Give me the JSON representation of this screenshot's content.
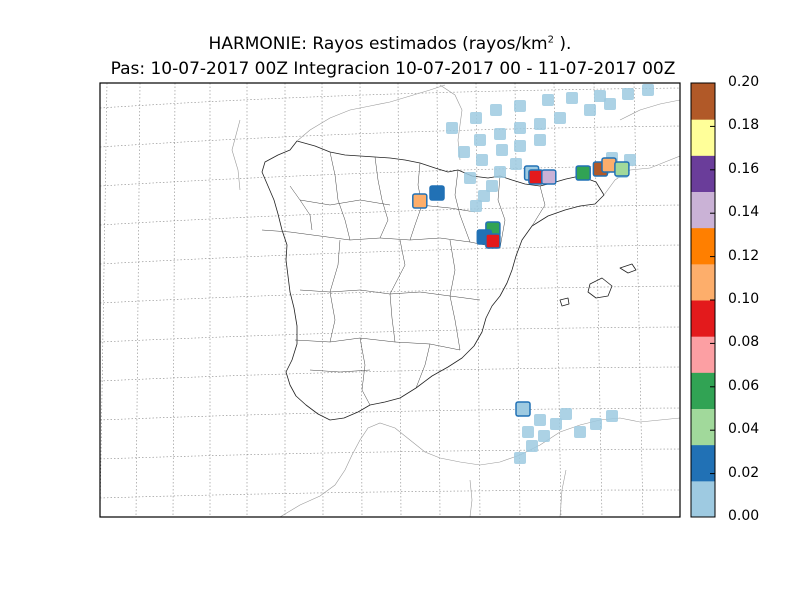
{
  "title": {
    "line1_prefix": "HARMONIE: Rayos estimados  (rayos/km",
    "line1_sup": "2",
    "line1_suffix": " ).",
    "line2": "Pas: 10-07-2017 00Z Integracion 10-07-2017 00 - 11-07-2017 00Z"
  },
  "colorbar": {
    "min": 0.0,
    "max": 0.2,
    "ticks": [
      "0.00",
      "0.02",
      "0.04",
      "0.06",
      "0.08",
      "0.10",
      "0.12",
      "0.14",
      "0.16",
      "0.18",
      "0.20"
    ],
    "colors": [
      "#9ecae1",
      "#2171b5",
      "#a1d99b",
      "#31a354",
      "#fc9fa3",
      "#e31a1c",
      "#fdae6b",
      "#ff7f00",
      "#cab2d6",
      "#6a3d9a",
      "#ffff99",
      "#b15928"
    ]
  },
  "chart_data": {
    "type": "heatmap",
    "region": "Iberian Peninsula",
    "variable": "Rayos estimados",
    "units": "rayos/km2",
    "valid": "10-07-2017 00 - 11-07-2017 00Z",
    "cells": [
      {
        "lon": 1.2,
        "lat": 42.3,
        "value": 0.01
      },
      {
        "lon": 2.4,
        "lat": 42.3,
        "value": 0.05
      },
      {
        "lon": 2.8,
        "lat": 42.4,
        "value": 0.2
      },
      {
        "lon": 3.0,
        "lat": 42.5,
        "value": 0.11
      },
      {
        "lon": 3.3,
        "lat": 42.4,
        "value": 0.04
      },
      {
        "lon": 1.3,
        "lat": 42.2,
        "value": 0.09
      },
      {
        "lon": 1.6,
        "lat": 42.2,
        "value": 0.15
      },
      {
        "lon": -1.0,
        "lat": 41.8,
        "value": 0.02
      },
      {
        "lon": -1.4,
        "lat": 41.6,
        "value": 0.1
      },
      {
        "lon": 0.3,
        "lat": 40.9,
        "value": 0.05
      },
      {
        "lon": 0.1,
        "lat": 40.7,
        "value": 0.03
      },
      {
        "lon": 0.3,
        "lat": 40.6,
        "value": 0.09
      },
      {
        "lon": 4.6,
        "lat": 45.0,
        "value": 0.14
      },
      {
        "lon": 5.1,
        "lat": 45.2,
        "value": 0.05
      },
      {
        "lon": 1.0,
        "lat": 36.4,
        "value": 0.01
      }
    ]
  }
}
